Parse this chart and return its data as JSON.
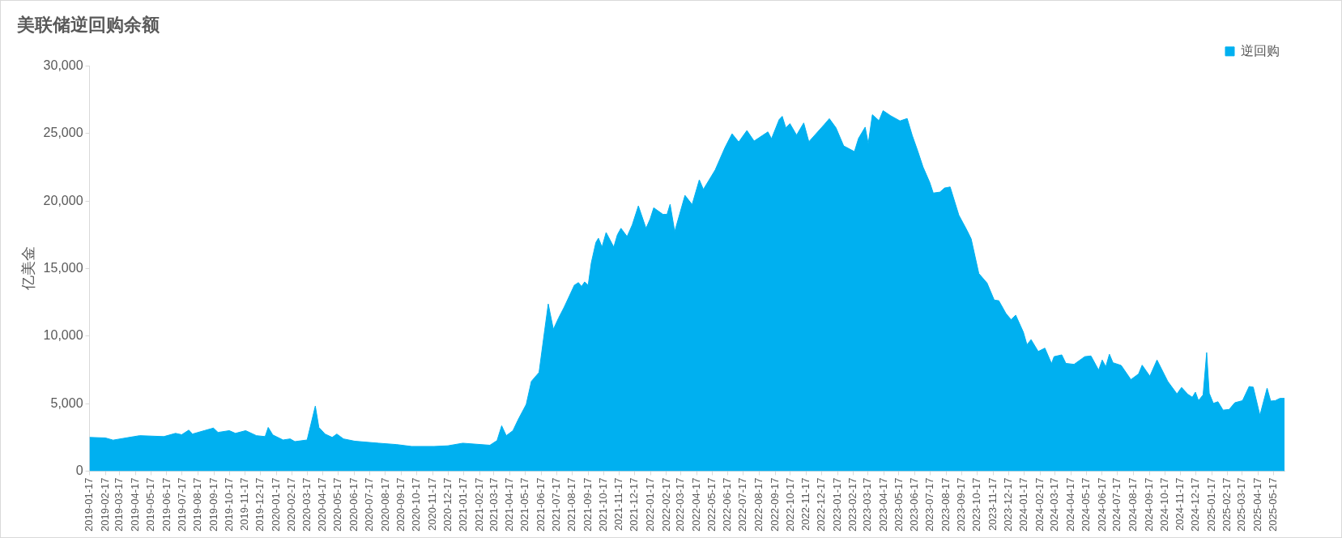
{
  "chart_data": {
    "type": "area",
    "title": "美联储逆回购余额",
    "ylabel": "亿美金",
    "x": [
      "2019-01-17",
      "2019-02-17",
      "2019-03-04",
      "2019-04-14",
      "2019-04-25",
      "2019-06-11",
      "2019-07-04",
      "2019-07-16",
      "2019-07-30",
      "2019-08-06",
      "2019-08-29",
      "2019-09-16",
      "2019-09-25",
      "2019-10-17",
      "2019-10-29",
      "2019-11-18",
      "2019-12-09",
      "2019-12-26",
      "2020-01-01",
      "2020-01-10",
      "2020-01-30",
      "2020-02-13",
      "2020-02-22",
      "2020-03-17",
      "2020-04-02",
      "2020-04-09",
      "2020-04-21",
      "2020-05-05",
      "2020-05-14",
      "2020-05-27",
      "2020-06-18",
      "2020-08-04",
      "2020-09-08",
      "2020-10-07",
      "2020-11-20",
      "2020-12-17",
      "2021-01-15",
      "2021-03-09",
      "2021-03-23",
      "2021-04-01",
      "2021-04-10",
      "2021-04-23",
      "2021-05-03",
      "2021-05-19",
      "2021-05-29",
      "2021-06-13",
      "2021-06-24",
      "2021-07-01",
      "2021-07-11",
      "2021-07-21",
      "2021-08-01",
      "2021-08-21",
      "2021-08-29",
      "2021-09-04",
      "2021-09-10",
      "2021-09-17",
      "2021-09-23",
      "2021-10-02",
      "2021-10-07",
      "2021-10-14",
      "2021-10-22",
      "2021-11-06",
      "2021-11-13",
      "2021-11-20",
      "2021-12-02",
      "2021-12-12",
      "2021-12-24",
      "2022-01-08",
      "2022-01-16",
      "2022-01-23",
      "2022-02-10",
      "2022-02-18",
      "2022-02-24",
      "2022-03-05",
      "2022-03-25",
      "2022-04-08",
      "2022-04-22",
      "2022-04-30",
      "2022-05-23",
      "2022-06-11",
      "2022-06-25",
      "2022-07-08",
      "2022-07-24",
      "2022-08-07",
      "2022-09-03",
      "2022-09-10",
      "2022-09-25",
      "2022-10-01",
      "2022-10-08",
      "2022-10-16",
      "2022-10-29",
      "2022-11-12",
      "2022-11-22",
      "2022-12-22",
      "2023-01-01",
      "2023-01-14",
      "2023-01-29",
      "2023-02-19",
      "2023-02-27",
      "2023-03-12",
      "2023-03-18",
      "2023-03-26",
      "2023-04-08",
      "2023-04-16",
      "2023-05-01",
      "2023-05-19",
      "2023-06-02",
      "2023-06-12",
      "2023-06-23",
      "2023-07-03",
      "2023-07-16",
      "2023-07-23",
      "2023-08-05",
      "2023-08-14",
      "2023-08-25",
      "2023-09-11",
      "2023-09-27",
      "2023-10-05",
      "2023-10-20",
      "2023-11-05",
      "2023-11-19",
      "2023-11-28",
      "2023-12-12",
      "2023-12-22",
      "2023-12-31",
      "2024-01-15",
      "2024-01-22",
      "2024-01-30",
      "2024-02-13",
      "2024-02-26",
      "2024-03-10",
      "2024-03-15",
      "2024-03-30",
      "2024-04-07",
      "2024-04-23",
      "2024-05-14",
      "2024-05-26",
      "2024-06-10",
      "2024-06-17",
      "2024-06-24",
      "2024-07-01",
      "2024-07-08",
      "2024-07-24",
      "2024-08-12",
      "2024-08-27",
      "2024-09-03",
      "2024-09-18",
      "2024-10-02",
      "2024-10-23",
      "2024-11-10",
      "2024-11-19",
      "2024-12-01",
      "2024-12-10",
      "2024-12-16",
      "2024-12-22",
      "2024-12-31",
      "2025-01-07",
      "2025-01-12",
      "2025-01-20",
      "2025-01-29",
      "2025-02-08",
      "2025-02-20",
      "2025-03-03",
      "2025-03-18",
      "2025-03-31",
      "2025-04-08",
      "2025-04-21",
      "2025-05-05",
      "2025-05-12",
      "2025-05-21",
      "2025-05-30",
      "2025-06-08"
    ],
    "series": [
      {
        "name": "逆回购",
        "color": "#00b0f0",
        "values": [
          2500,
          2460,
          2300,
          2560,
          2630,
          2560,
          2800,
          2700,
          3040,
          2750,
          3000,
          3190,
          2870,
          3000,
          2800,
          3000,
          2630,
          2560,
          3240,
          2680,
          2310,
          2390,
          2190,
          2310,
          4820,
          3240,
          2750,
          2500,
          2750,
          2390,
          2220,
          2070,
          1970,
          1830,
          1830,
          1880,
          2070,
          1920,
          2270,
          3360,
          2630,
          3000,
          3800,
          4950,
          6650,
          7310,
          10430,
          12380,
          10500,
          11330,
          12140,
          13770,
          13960,
          13670,
          14010,
          13770,
          15420,
          16930,
          17250,
          16590,
          17670,
          16590,
          17500,
          17980,
          17370,
          18230,
          19640,
          17980,
          18670,
          19500,
          19010,
          19010,
          19760,
          17740,
          20420,
          19740,
          21570,
          20860,
          22300,
          23950,
          24980,
          24370,
          25220,
          24440,
          25120,
          24610,
          26030,
          26270,
          25420,
          25730,
          24880,
          25780,
          24390,
          25660,
          26100,
          25420,
          24080,
          23660,
          24640,
          25470,
          24250,
          26390,
          25950,
          26690,
          26310,
          25930,
          26110,
          24850,
          23670,
          22520,
          21390,
          20590,
          20660,
          20960,
          21040,
          18950,
          17820,
          17200,
          14630,
          13930,
          12670,
          12620,
          11670,
          11220,
          11550,
          10290,
          9360,
          9740,
          8860,
          9110,
          7960,
          8480,
          8610,
          7980,
          7910,
          8480,
          8530,
          7480,
          8230,
          7730,
          8660,
          8030,
          7830,
          6780,
          7200,
          7850,
          7030,
          8230,
          6650,
          5720,
          6200,
          5700,
          5470,
          5850,
          5220,
          5650,
          8780,
          5770,
          5020,
          5140,
          4520,
          4570,
          5070,
          5220,
          6270,
          6220,
          4140,
          6150,
          5190,
          5220,
          5390,
          5390
        ]
      }
    ],
    "xlim": [
      "2019-01-17",
      "2025-06-08"
    ],
    "xticks": [
      "2019-01-17",
      "2019-02-17",
      "2019-03-17",
      "2019-04-17",
      "2019-05-17",
      "2019-06-17",
      "2019-07-17",
      "2019-08-17",
      "2019-09-17",
      "2019-10-17",
      "2019-11-17",
      "2019-12-17",
      "2020-01-17",
      "2020-02-17",
      "2020-03-17",
      "2020-04-17",
      "2020-05-17",
      "2020-06-17",
      "2020-07-17",
      "2020-08-17",
      "2020-09-17",
      "2020-10-17",
      "2020-11-17",
      "2020-12-17",
      "2021-01-17",
      "2021-02-17",
      "2021-03-17",
      "2021-04-17",
      "2021-05-17",
      "2021-06-17",
      "2021-07-17",
      "2021-08-17",
      "2021-09-17",
      "2021-10-17",
      "2021-11-17",
      "2021-12-17",
      "2022-01-17",
      "2022-02-17",
      "2022-03-17",
      "2022-04-17",
      "2022-05-17",
      "2022-06-17",
      "2022-07-17",
      "2022-08-17",
      "2022-09-17",
      "2022-10-17",
      "2022-11-17",
      "2022-12-17",
      "2023-01-17",
      "2023-02-17",
      "2023-03-17",
      "2023-04-17",
      "2023-05-17",
      "2023-06-17",
      "2023-07-17",
      "2023-08-17",
      "2023-09-17",
      "2023-10-17",
      "2023-11-17",
      "2023-12-17",
      "2024-01-17",
      "2024-02-17",
      "2024-03-17",
      "2024-04-17",
      "2024-05-17",
      "2024-06-17",
      "2024-07-17",
      "2024-08-17",
      "2024-09-17",
      "2024-10-17",
      "2024-11-17",
      "2024-12-17",
      "2025-01-17",
      "2025-02-17",
      "2025-03-17",
      "2025-04-17",
      "2025-05-17"
    ],
    "ylim": [
      0,
      30000
    ],
    "yticks": [
      0,
      {
        "value": 5000,
        "label": "5,000"
      },
      {
        "value": 10000,
        "label": "10,000"
      },
      {
        "value": 15000,
        "label": "15,000"
      },
      {
        "value": 20000,
        "label": "20,000"
      },
      {
        "value": 25000,
        "label": "25,000"
      },
      {
        "value": 30000,
        "label": "30,000"
      }
    ],
    "grid": false,
    "legend": "top right"
  }
}
